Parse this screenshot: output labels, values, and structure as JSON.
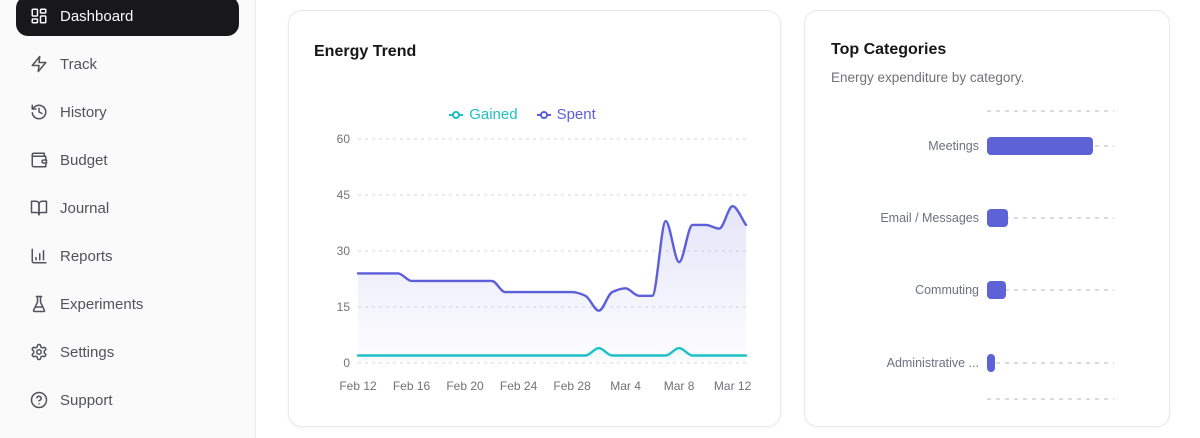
{
  "sidebar": {
    "items": [
      {
        "label": "Dashboard",
        "icon": "layout-dashboard-icon",
        "active": true
      },
      {
        "label": "Track",
        "icon": "zap-icon"
      },
      {
        "label": "History",
        "icon": "history-icon"
      },
      {
        "label": "Budget",
        "icon": "wallet-icon"
      },
      {
        "label": "Journal",
        "icon": "book-open-icon"
      },
      {
        "label": "Reports",
        "icon": "bar-chart-icon"
      },
      {
        "label": "Experiments",
        "icon": "flask-icon"
      },
      {
        "label": "Settings",
        "icon": "gear-icon"
      },
      {
        "label": "Support",
        "icon": "help-circle-icon"
      }
    ]
  },
  "cards": {
    "energy_trend": {
      "title": "Energy Trend"
    },
    "top_categories": {
      "title": "Top Categories",
      "subtitle": "Energy expenditure by category."
    }
  },
  "colors": {
    "gained": "#1ec0c6",
    "spent": "#5c5fd9",
    "bar": "#5d62d6",
    "grid": "#d9d9e0",
    "axis_text": "#71717a",
    "active_nav_bg": "#18181b",
    "sidebar_bg": "#fafafa"
  },
  "chart_data": [
    {
      "type": "line",
      "title": "Energy Trend",
      "x": [
        "Feb 12",
        "Feb 13",
        "Feb 14",
        "Feb 15",
        "Feb 16",
        "Feb 17",
        "Feb 18",
        "Feb 19",
        "Feb 20",
        "Feb 21",
        "Feb 22",
        "Feb 23",
        "Feb 24",
        "Feb 25",
        "Feb 26",
        "Feb 27",
        "Feb 28",
        "Mar 1",
        "Mar 2",
        "Mar 3",
        "Mar 4",
        "Mar 5",
        "Mar 6",
        "Mar 7",
        "Mar 8",
        "Mar 9",
        "Mar 10",
        "Mar 11",
        "Mar 12",
        "Mar 13"
      ],
      "series": [
        {
          "name": "Gained",
          "color": "#1ec0c6",
          "values": [
            2,
            2,
            2,
            2,
            2,
            2,
            2,
            2,
            2,
            2,
            2,
            2,
            2,
            2,
            2,
            2,
            2,
            2,
            4,
            2,
            2,
            2,
            2,
            2,
            4,
            2,
            2,
            2,
            2,
            2
          ]
        },
        {
          "name": "Spent",
          "color": "#5c5fd9",
          "values": [
            24,
            24,
            24,
            24,
            22,
            22,
            22,
            22,
            22,
            22,
            22,
            19,
            19,
            19,
            19,
            19,
            19,
            18,
            14,
            19,
            20,
            18,
            18,
            38,
            27,
            37,
            37,
            36,
            42,
            37
          ]
        }
      ],
      "ylim": [
        0,
        60
      ],
      "yticks": [
        0,
        15,
        30,
        45,
        60
      ],
      "xtick_labels": [
        "Feb 12",
        "Feb 16",
        "Feb 20",
        "Feb 24",
        "Feb 28",
        "Mar 4",
        "Mar 8",
        "Mar 12"
      ],
      "xtick_days": [
        0,
        4,
        8,
        12,
        16,
        20,
        24,
        28
      ],
      "grid": "horizontal-dashed",
      "legend_position": "top-center",
      "area_fill": true
    },
    {
      "type": "bar",
      "orientation": "horizontal",
      "title": "Top Categories",
      "categories": [
        "Meetings",
        "Email / Messages",
        "Commuting",
        "Administrative ..."
      ],
      "values": [
        33.5,
        6.5,
        6,
        2.5
      ],
      "xlim": [
        0,
        40
      ],
      "bar_color": "#5d62d6",
      "grid": "dashed",
      "axis_labels_visible": false
    }
  ]
}
